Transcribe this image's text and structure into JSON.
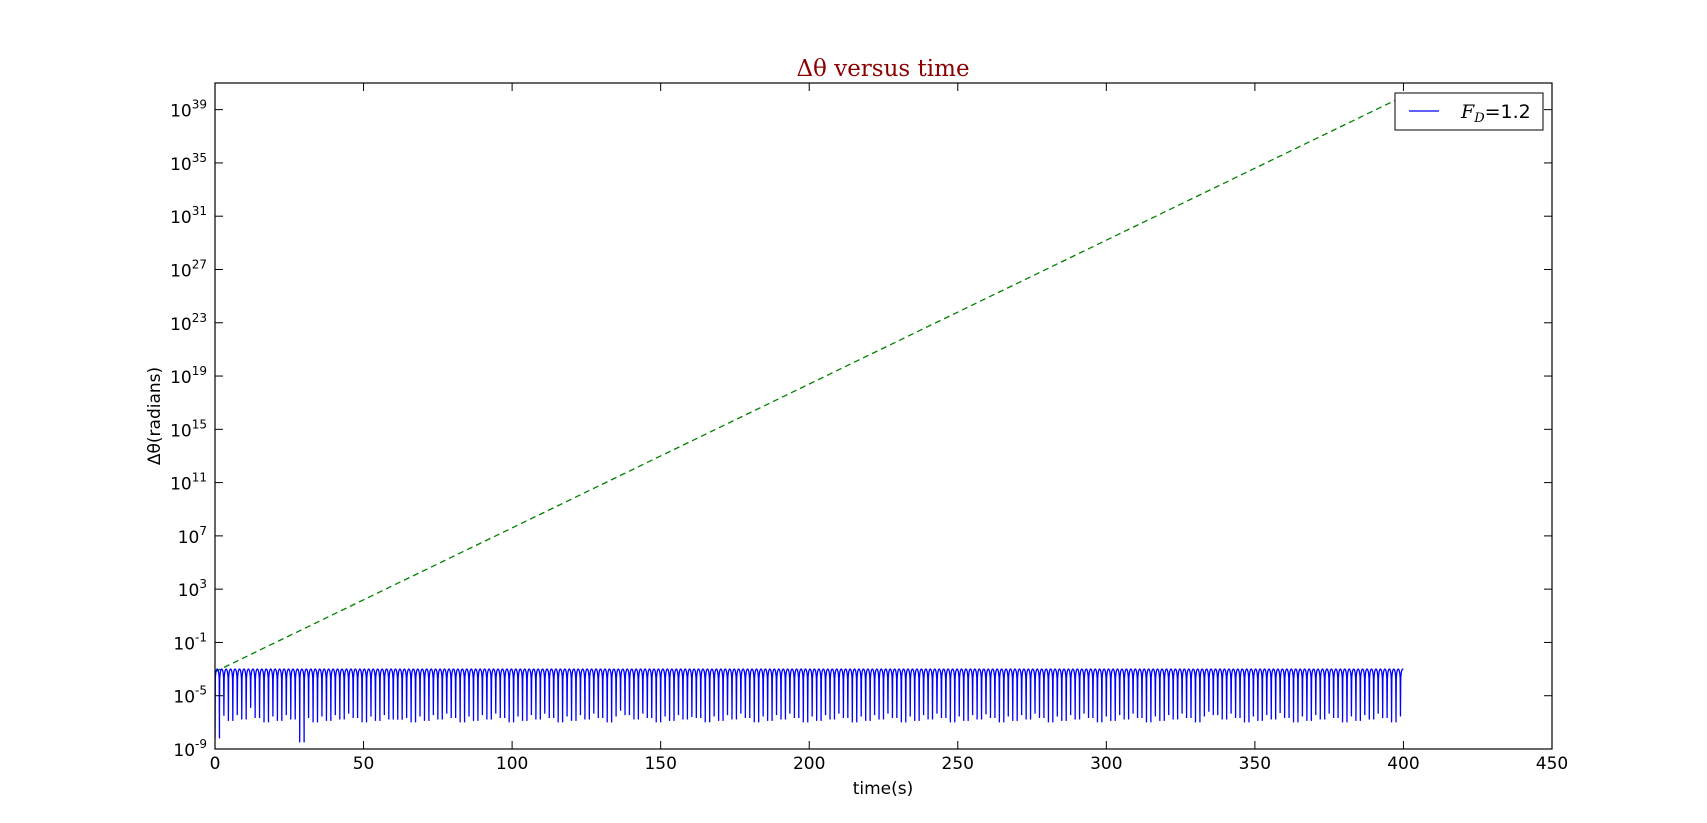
{
  "chart_data": {
    "type": "line",
    "title": "Δθ versus time",
    "title_color": "#8b0000",
    "xlabel": "time(s)",
    "ylabel": "Δθ(radians)",
    "xlim": [
      0,
      450
    ],
    "ylim_log10": [
      -9,
      41
    ],
    "y_scale": "log",
    "grid": false,
    "legend_position": "top-right",
    "x_ticks": [
      0,
      50,
      100,
      150,
      200,
      250,
      300,
      350,
      400,
      450
    ],
    "x_tick_labels": [
      "0",
      "50",
      "100",
      "150",
      "200",
      "250",
      "300",
      "350",
      "400",
      "450"
    ],
    "y_ticks_log10": [
      -9,
      -5,
      -1,
      3,
      7,
      11,
      15,
      19,
      23,
      27,
      31,
      35,
      39
    ],
    "y_tick_labels": [
      {
        "base": "10",
        "exp": "-9"
      },
      {
        "base": "10",
        "exp": "-5"
      },
      {
        "base": "10",
        "exp": "-1"
      },
      {
        "base": "10",
        "exp": "3"
      },
      {
        "base": "10",
        "exp": "7"
      },
      {
        "base": "10",
        "exp": "11"
      },
      {
        "base": "10",
        "exp": "15"
      },
      {
        "base": "10",
        "exp": "19"
      },
      {
        "base": "10",
        "exp": "23"
      },
      {
        "base": "10",
        "exp": "27"
      },
      {
        "base": "10",
        "exp": "31"
      },
      {
        "base": "10",
        "exp": "35"
      },
      {
        "base": "10",
        "exp": "39"
      }
    ],
    "legend_entry": {
      "symbol": "F",
      "subscript": "D",
      "suffix": "=1.2"
    },
    "series": [
      {
        "name": "F_D=1.2",
        "style": "solid",
        "color": "#0000ff",
        "period_s": 3.0,
        "x_range": [
          0,
          400
        ],
        "envelope_peak_log10": -3.0,
        "notch_min_log10": -7.0,
        "deep_dips": [
          {
            "x": 0.0,
            "log10_y": -8.2
          },
          {
            "x": 2.0,
            "log10_y": -6.5
          },
          {
            "x": 28.0,
            "log10_y": -8.5
          },
          {
            "x": 61.0,
            "log10_y": -6.8
          },
          {
            "x": 160.0,
            "log10_y": -6.6
          },
          {
            "x": 258.0,
            "log10_y": -6.4
          },
          {
            "x": 10.0,
            "log10_y": -5.9
          },
          {
            "x": 136.0,
            "log10_y": -6.1
          },
          {
            "x": 234.0,
            "log10_y": -6.2
          },
          {
            "x": 334.0,
            "log10_y": -6.2
          },
          {
            "x": 357.0,
            "log10_y": -6.3
          }
        ]
      },
      {
        "name": "",
        "style": "dashed",
        "color": "#008000",
        "x": [
          0,
          400
        ],
        "log10_y": [
          -3.2,
          40.0
        ]
      }
    ]
  }
}
